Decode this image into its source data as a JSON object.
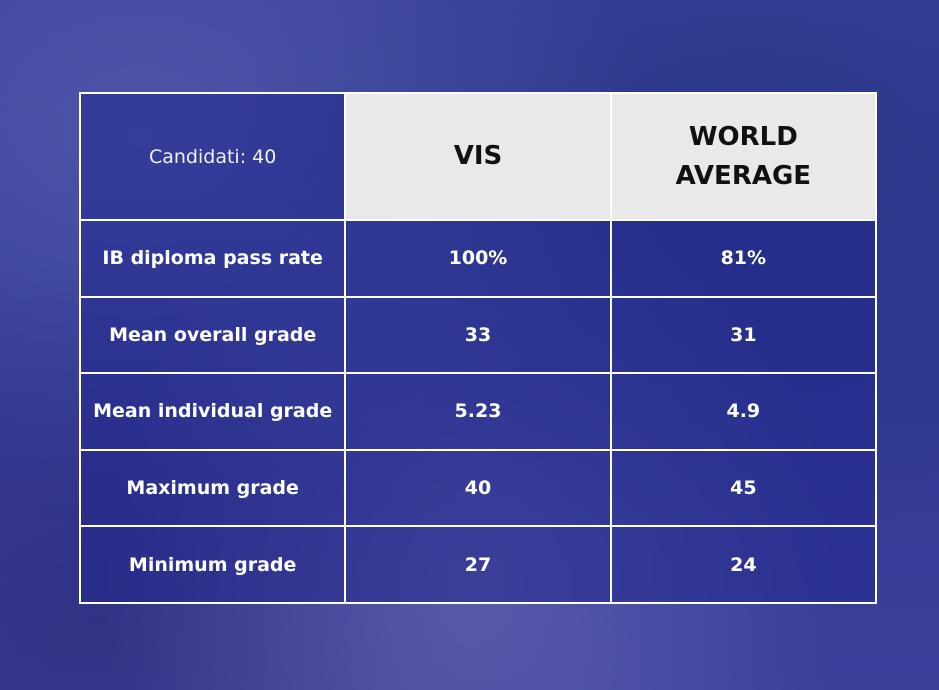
{
  "table": {
    "header": [
      "Candidati: 40",
      "VIS",
      "WORLD AVERAGE"
    ],
    "rows": [
      [
        "IB diploma pass rate",
        "100%",
        "81%"
      ],
      [
        "Mean overall grade",
        "33",
        "31"
      ],
      [
        "Mean individual grade",
        "5.23",
        "4.9"
      ],
      [
        "Maximum grade",
        "40",
        "45"
      ],
      [
        "Minimum grade",
        "27",
        "24"
      ]
    ]
  }
}
